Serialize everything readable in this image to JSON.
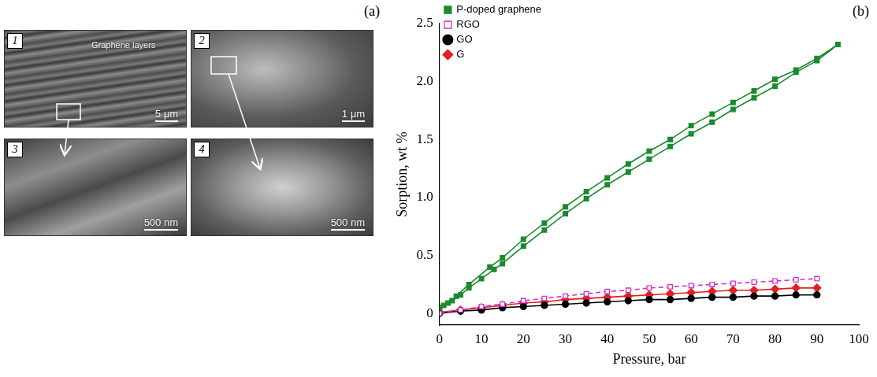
{
  "panels": {
    "a": {
      "label": "(a)",
      "images": [
        {
          "number": "1",
          "caption": "Graphene layers",
          "scale_bar": "5 μm"
        },
        {
          "number": "2",
          "scale_bar": "1 μm"
        },
        {
          "number": "3",
          "scale_bar": "500 nm"
        },
        {
          "number": "4",
          "scale_bar": "500 nm"
        }
      ]
    },
    "b": {
      "label": "(b)"
    }
  },
  "chart_data": {
    "type": "line",
    "x_label": "Pressure, bar",
    "y_label": "Sorption, wt %",
    "xlim": [
      0,
      100
    ],
    "xticks": [
      0,
      10,
      20,
      30,
      40,
      50,
      60,
      70,
      80,
      90,
      100
    ],
    "ylim": [
      -0.1,
      2.5
    ],
    "yticks": [
      0,
      0.5,
      {
        "value": 1,
        "label": "1.0"
      },
      1.5,
      {
        "value": 2,
        "label": "2.0"
      },
      2.5
    ],
    "grid": false,
    "legend": "upper left",
    "series": [
      {
        "name": "P-doped graphene",
        "color": "#1a8a2e",
        "marker": "square",
        "line_style": "solid",
        "x": [
          0,
          1,
          3,
          5,
          7,
          10,
          13,
          15,
          20,
          25,
          30,
          35,
          40,
          45,
          50,
          55,
          60,
          65,
          70,
          75,
          80,
          85,
          90,
          95,
          90,
          85,
          80,
          75,
          70,
          65,
          60,
          55,
          50,
          45,
          40,
          35,
          30,
          25,
          20,
          15,
          12,
          7,
          4,
          2,
          0
        ],
        "values": [
          0.05,
          0.07,
          0.11,
          0.16,
          0.22,
          0.3,
          0.38,
          0.43,
          0.58,
          0.72,
          0.86,
          0.99,
          1.11,
          1.22,
          1.33,
          1.44,
          1.55,
          1.65,
          1.76,
          1.86,
          1.96,
          2.08,
          2.18,
          2.32,
          2.2,
          2.1,
          2.02,
          1.92,
          1.82,
          1.72,
          1.62,
          1.5,
          1.4,
          1.29,
          1.17,
          1.05,
          0.92,
          0.78,
          0.64,
          0.48,
          0.4,
          0.25,
          0.15,
          0.09,
          0.05
        ]
      },
      {
        "name": "RGO",
        "color": "#cc33cc",
        "marker": "open_square",
        "line_style": "dashed",
        "x": [
          0,
          5,
          10,
          15,
          20,
          25,
          30,
          35,
          40,
          45,
          50,
          55,
          60,
          65,
          70,
          75,
          80,
          85,
          90
        ],
        "values": [
          0.0,
          0.03,
          0.06,
          0.08,
          0.11,
          0.13,
          0.15,
          0.17,
          0.19,
          0.2,
          0.22,
          0.23,
          0.24,
          0.25,
          0.26,
          0.27,
          0.28,
          0.29,
          0.3
        ]
      },
      {
        "name": "GO",
        "color": "#000000",
        "marker": "circle",
        "line_style": "solid",
        "x": [
          0,
          5,
          10,
          15,
          20,
          25,
          30,
          35,
          40,
          45,
          50,
          55,
          60,
          65,
          70,
          75,
          80,
          85,
          90
        ],
        "values": [
          0.0,
          0.02,
          0.03,
          0.05,
          0.06,
          0.07,
          0.08,
          0.09,
          0.1,
          0.11,
          0.12,
          0.12,
          0.13,
          0.14,
          0.14,
          0.15,
          0.15,
          0.16,
          0.16
        ]
      },
      {
        "name": "G",
        "color": "#e02020",
        "marker": "diamond",
        "line_style": "solid",
        "x": [
          0,
          5,
          10,
          15,
          20,
          25,
          30,
          35,
          40,
          45,
          50,
          55,
          60,
          65,
          70,
          75,
          80,
          85,
          90
        ],
        "values": [
          0.01,
          0.03,
          0.05,
          0.07,
          0.09,
          0.1,
          0.12,
          0.13,
          0.14,
          0.15,
          0.16,
          0.17,
          0.18,
          0.19,
          0.2,
          0.2,
          0.21,
          0.22,
          0.22
        ]
      }
    ]
  }
}
